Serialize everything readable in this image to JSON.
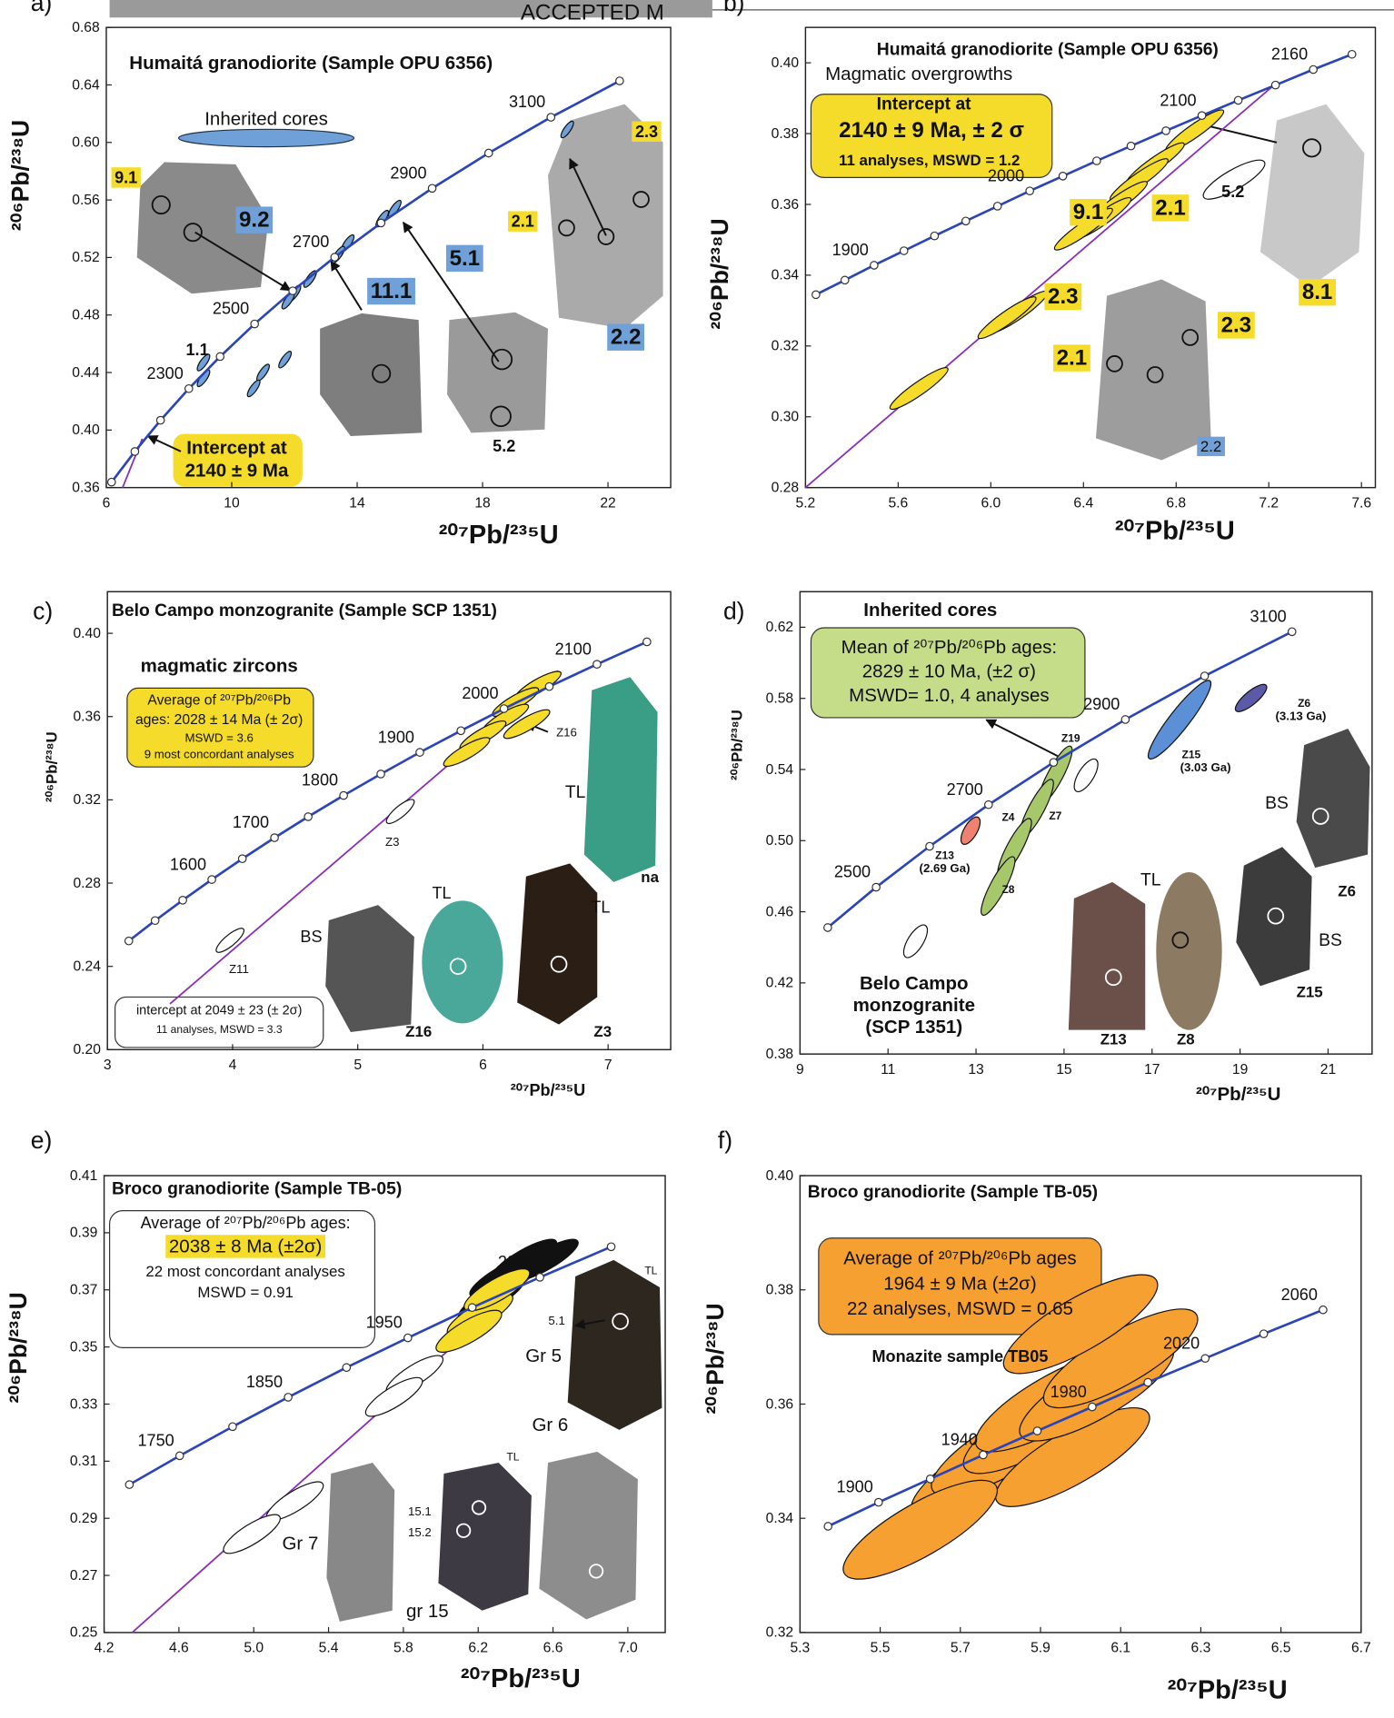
{
  "figure": {
    "watermark": "ACCEPTED M"
  },
  "chart_data": [
    {
      "type": "concordia",
      "panel": "a)",
      "title": "Humaitá granodiorite (Sample OPU 6356)",
      "x_label": "²⁰⁷Pb/²³⁵U",
      "y_label": "²⁰⁶Pb/²³⁸U",
      "xlim": [
        6,
        24
      ],
      "ylim": [
        0.36,
        0.68
      ],
      "xticks": [
        6,
        10,
        14,
        18,
        22
      ],
      "yticks": [
        0.36,
        {
          "value": 0.4,
          "label": "0.40"
        },
        0.44,
        0.48,
        0.52,
        0.56,
        {
          "value": 0.6,
          "label": "0.60"
        },
        0.64,
        0.68
      ],
      "concordia": {
        "color": "#2b44b8",
        "x": [
          6.168,
          6.911,
          7.729,
          8.632,
          9.63,
          10.73,
          11.945,
          13.284,
          14.762,
          16.393,
          18.194,
          20.18,
          22.372
        ],
        "values": [
          0.3638,
          0.3851,
          0.4068,
          0.4288,
          0.4511,
          0.4738,
          0.4968,
          0.5202,
          0.544,
          0.5681,
          0.5926,
          0.6175,
          0.6428
        ],
        "labels": [
          null,
          null,
          null,
          2300,
          null,
          2500,
          null,
          2700,
          null,
          2900,
          null,
          3100,
          null
        ]
      },
      "discordia": {
        "color": "#8a2fb8",
        "x": [
          6.52,
          7.15
        ],
        "values": [
          0.36,
          0.394
        ]
      },
      "ellipses": [
        {
          "color": "#6fa0d8",
          "x": [
            20.7,
            15.2,
            14.8,
            13.7,
            13.4,
            12.5,
            12.0,
            11.8,
            11.7,
            11.0,
            10.7,
            9.1,
            9.1
          ],
          "values": [
            0.609,
            0.554,
            0.547,
            0.53,
            0.522,
            0.505,
            0.495,
            0.49,
            0.449,
            0.44,
            0.429,
            0.436,
            0.447
          ]
        }
      ],
      "annotations": [
        "Inherited cores",
        "9.1",
        "9.2",
        "11.1",
        "5.1",
        "2.2",
        "2.3",
        "2.1",
        "1.1",
        "5.2",
        "Intercept at",
        "2140 ± 9 Ma"
      ]
    },
    {
      "type": "concordia",
      "panel": "b)",
      "title": "Humaitá granodiorite (Sample OPU 6356)",
      "x_label": "²⁰⁷Pb/²³⁵U",
      "y_label": "²⁰⁶Pb/²³⁸U",
      "xlim": [
        5.2,
        7.66
      ],
      "ylim": [
        0.28,
        0.41
      ],
      "xticks": [
        5.2,
        5.6,
        {
          "value": 6,
          "label": "6.0"
        },
        6.4,
        6.8,
        7.2,
        7.6
      ],
      "yticks": [
        0.28,
        {
          "value": 0.3,
          "label": "0.30"
        },
        0.32,
        0.34,
        0.36,
        0.38,
        {
          "value": 0.4,
          "label": "0.40"
        }
      ],
      "concordia": {
        "color": "#2b44b8",
        "x": [
          5.245,
          5.37,
          5.496,
          5.625,
          5.757,
          5.892,
          6.029,
          6.168,
          6.311,
          6.457,
          6.605,
          6.756,
          6.911,
          7.068,
          7.229,
          7.392,
          7.559
        ],
        "values": [
          0.3345,
          0.3386,
          0.3428,
          0.3469,
          0.3511,
          0.3553,
          0.3595,
          0.3638,
          0.368,
          0.3723,
          0.3765,
          0.3808,
          0.3851,
          0.3894,
          0.3937,
          0.3981,
          0.4024
        ],
        "labels": [
          null,
          null,
          1900,
          null,
          null,
          null,
          null,
          2000,
          null,
          null,
          null,
          null,
          2100,
          null,
          null,
          2160,
          null
        ]
      },
      "discordia": {
        "color": "#8a2fb8",
        "x": [
          5.2,
          7.24
        ],
        "values": [
          0.28,
          0.3947
        ]
      },
      "ellipses": [
        {
          "color": "#f5dc2a",
          "x": [
            6.88,
            6.71,
            6.64,
            6.55,
            6.48,
            6.4,
            6.12,
            6.07,
            5.69
          ],
          "values": [
            0.3808,
            0.3715,
            0.367,
            0.3606,
            0.356,
            0.353,
            0.3296,
            0.328,
            0.308
          ]
        },
        {
          "color": "#ffffff",
          "x": [
            7.05
          ],
          "values": [
            0.367
          ]
        }
      ],
      "annotations": [
        "Magmatic overgrowths",
        "Intercept at",
        "2140 ± 9 Ma, ± 2 σ",
        "11 analyses, MSWD = 1.2",
        "9.1",
        "2.1",
        "5.2",
        "2.3",
        "8.1",
        "2.3",
        "2.1",
        "2.2"
      ]
    },
    {
      "type": "concordia",
      "panel": "c)",
      "title": "Belo Campo monzogranite (Sample SCP 1351)",
      "x_label": "²⁰⁷Pb/²³⁵U",
      "y_label": "²⁰⁶Pb/²³⁸U",
      "xlim": [
        3,
        7.5
      ],
      "ylim": [
        0.2,
        0.42
      ],
      "xticks": [
        3,
        4,
        5,
        6,
        7
      ],
      "yticks": [
        {
          "value": 0.2,
          "label": "0.20"
        },
        0.24,
        0.28,
        0.32,
        0.36,
        {
          "value": 0.4,
          "label": "0.40"
        }
      ],
      "concordia": {
        "color": "#2b44b8",
        "x": [
          3.171,
          3.381,
          3.602,
          3.834,
          4.078,
          4.335,
          4.604,
          4.887,
          5.184,
          5.496,
          5.824,
          6.168,
          6.53,
          6.911,
          7.31
        ],
        "values": [
          0.2522,
          0.262,
          0.2718,
          0.2817,
          0.2917,
          0.3018,
          0.3119,
          0.3221,
          0.3324,
          0.3428,
          0.3532,
          0.3638,
          0.3744,
          0.3851,
          0.3959
        ],
        "labels": [
          null,
          null,
          null,
          1600,
          null,
          1700,
          null,
          1800,
          null,
          1900,
          null,
          2000,
          null,
          2100,
          null
        ]
      },
      "discordia": {
        "color": "#8a2fb8",
        "x": [
          3.5,
          6.6
        ],
        "values": [
          0.222,
          0.382
        ]
      },
      "ellipses": [
        {
          "color": "#f5dc2a",
          "x": [
            6.44,
            6.26,
            6.18,
            6.0,
            5.87,
            6.35
          ],
          "values": [
            0.3748,
            0.367,
            0.359,
            0.351,
            0.343,
            0.3564
          ]
        },
        {
          "color": "#ffffff",
          "x": [
            5.34,
            3.98
          ],
          "values": [
            0.3144,
            0.2525
          ]
        }
      ],
      "annotations": [
        "magmatic zircons",
        "Average of ²⁰⁷Pb/²⁰⁶Pb",
        "ages: 2028 ± 14 Ma (± 2σ)",
        "MSWD = 3.6",
        "9 most concordant analyses",
        "Z16",
        "Z3",
        "Z11",
        "TL",
        "na",
        "BS",
        "TL",
        "TL",
        "Z16",
        "Z3",
        "intercept at 2049 ± 23 (± 2σ)",
        "11 analyses, MSWD = 3.3"
      ]
    },
    {
      "type": "concordia",
      "panel": "d)",
      "title": "Inherited cores",
      "x_label": "²⁰⁷Pb/²³⁵U",
      "y_label": "²⁰⁶Pb/²³⁸U",
      "xlim": [
        9,
        22
      ],
      "ylim": [
        0.38,
        0.64
      ],
      "xticks": [
        9,
        11,
        13,
        15,
        17,
        19,
        21
      ],
      "yticks": [
        0.38,
        0.42,
        0.46,
        {
          "value": 0.5,
          "label": "0.50"
        },
        0.54,
        0.58,
        0.62
      ],
      "concordia": {
        "color": "#2b44b8",
        "x": [
          9.63,
          10.73,
          11.945,
          13.284,
          14.762,
          16.393,
          18.194,
          20.18
        ],
        "values": [
          0.4511,
          0.4738,
          0.4968,
          0.5202,
          0.544,
          0.5681,
          0.5926,
          0.6175
        ],
        "labels": [
          null,
          2500,
          null,
          2700,
          null,
          2900,
          null,
          3100
        ]
      },
      "ellipses": [
        {
          "color": "#a6c86a",
          "x": [
            14.8,
            14.375,
            13.875,
            13.5
          ],
          "values": [
            0.5367,
            0.518,
            0.496,
            0.4745
          ]
        },
        {
          "color": "#f08070",
          "x": [
            12.875
          ],
          "values": [
            0.5056
          ]
        },
        {
          "color": "#5b8fd6",
          "x": [
            17.625
          ],
          "values": [
            0.568
          ]
        },
        {
          "color": "#5a5aa8",
          "x": [
            19.25
          ],
          "values": [
            0.5802
          ]
        },
        {
          "color": "#ffffff",
          "x": [
            15.5,
            11.625
          ],
          "values": [
            0.5367,
            0.4434
          ]
        }
      ],
      "annotations": [
        "Mean of ²⁰⁷Pb/²⁰⁶Pb ages:",
        "2829 ± 10 Ma, (±2 σ)",
        "MSWD= 1.0, 4 analyses",
        "Z19",
        "Z4",
        "Z7",
        "Z8",
        "Z13",
        "(2.69 Ga)",
        "Z15",
        "(3.03 Ga)",
        "Z6",
        "(3.13 Ga)",
        "BS",
        "BS",
        "TL",
        "Z6",
        "Z15",
        "Z13",
        "Z8",
        "Belo Campo",
        "monzogranite",
        "(SCP 1351)"
      ]
    },
    {
      "type": "concordia",
      "panel": "e)",
      "title": "Broco granodiorite (Sample TB-05)",
      "x_label": "²⁰⁷Pb/²³⁵U",
      "y_label": "²⁰⁶Pb/²³⁸U",
      "xlim": [
        4.2,
        7.2
      ],
      "ylim": [
        0.25,
        0.41
      ],
      "xticks": [
        4.2,
        4.6,
        {
          "value": 5,
          "label": "5.0"
        },
        5.4,
        5.8,
        6.2,
        6.6,
        {
          "value": 7,
          "label": "7.0"
        }
      ],
      "yticks": [
        0.25,
        0.27,
        0.29,
        0.31,
        0.33,
        0.35,
        0.37,
        0.39,
        0.41
      ],
      "concordia": {
        "color": "#2b44b8",
        "x": [
          4.335,
          4.604,
          4.887,
          5.184,
          5.496,
          5.824,
          6.168,
          6.53,
          6.911
        ],
        "values": [
          0.3018,
          0.3119,
          0.3221,
          0.3324,
          0.3428,
          0.3532,
          0.3638,
          0.3744,
          0.3851
        ],
        "labels": [
          null,
          1750,
          null,
          1850,
          null,
          1950,
          null,
          2050,
          null
        ]
      },
      "discordia": {
        "color": "#8a2fb8",
        "x": [
          4.35,
          6.68
        ],
        "values": [
          0.25,
          0.3862
        ]
      },
      "ellipses": [
        {
          "color": "#111111",
          "x": [
            6.33,
            6.445,
            6.56,
            6.27
          ],
          "values": [
            0.3747,
            0.3805,
            0.3805,
            0.367
          ]
        },
        {
          "color": "#f5dc2a",
          "x": [
            6.21,
            6.15,
            6.3
          ],
          "values": [
            0.3613,
            0.3555,
            0.37
          ]
        },
        {
          "color": "#ffffff",
          "x": [
            5.86,
            5.75,
            5.22,
            4.99
          ],
          "values": [
            0.3402,
            0.3325,
            0.296,
            0.2845
          ]
        }
      ],
      "annotations": [
        "Average of ²⁰⁷Pb/²⁰⁶Pb ages:",
        "2038 ± 8 Ma (±2σ)",
        "22 most concordant analyses",
        "MSWD = 0.91",
        "TL",
        "5.1",
        "Gr 5",
        "Gr 6",
        "Gr 7",
        "TL",
        "15.1",
        "15.2",
        "gr 15"
      ]
    },
    {
      "type": "concordia",
      "panel": "f)",
      "title": "Broco granodiorite (Sample TB-05)",
      "x_label": "²⁰⁷Pb/²³⁵U",
      "y_label": "²⁰⁶Pb/²³⁸U",
      "xlim": [
        5.3,
        6.7
      ],
      "ylim": [
        0.32,
        0.4
      ],
      "xticks": [
        5.3,
        5.5,
        5.7,
        5.9,
        6.1,
        6.3,
        6.5,
        6.7
      ],
      "yticks": [
        0.32,
        0.34,
        0.36,
        0.38,
        {
          "value": 0.4,
          "label": "0.40"
        }
      ],
      "concordia": {
        "color": "#2b44b8",
        "x": [
          5.37,
          5.496,
          5.625,
          5.757,
          5.892,
          6.029,
          6.168,
          6.311,
          6.457,
          6.605
        ],
        "values": [
          0.3386,
          0.3428,
          0.3469,
          0.3511,
          0.3553,
          0.3595,
          0.3638,
          0.368,
          0.3723,
          0.3765
        ],
        "labels": [
          null,
          1900,
          null,
          1940,
          null,
          1980,
          null,
          2020,
          null,
          2060
        ]
      },
      "ellipses": [
        {
          "color": "#f5a030",
          "x": [
            5.77,
            5.82,
            5.9,
            5.93,
            5.98,
            6.04,
            6.1,
            5.6,
            6.0
          ],
          "values": [
            0.3488,
            0.3526,
            0.3565,
            0.3603,
            0.3507,
            0.3622,
            0.368,
            0.338,
            0.374
          ]
        }
      ],
      "annotations": [
        "Average of ²⁰⁷Pb/²⁰⁶Pb ages",
        "1964 ± 9 Ma (±2σ)",
        "22 analyses, MSWD = 0.65",
        "Monazite sample TB05"
      ]
    }
  ]
}
